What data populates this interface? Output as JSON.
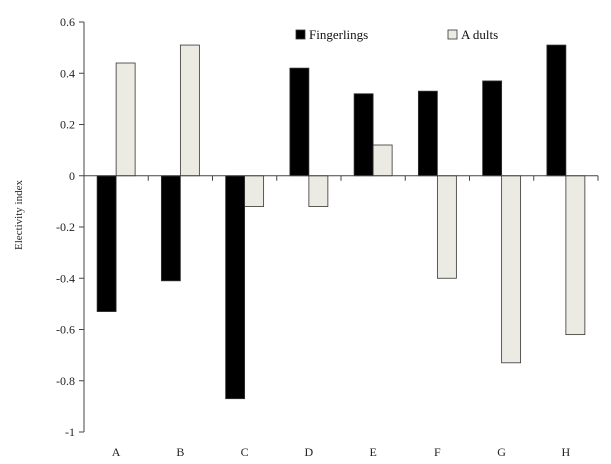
{
  "chart_data": {
    "type": "bar",
    "categories": [
      "A",
      "B",
      "C",
      "D",
      "E",
      "F",
      "G",
      "H"
    ],
    "series": [
      {
        "name": "Fingerlings",
        "color": "#000000",
        "values": [
          -0.53,
          -0.41,
          -0.87,
          0.42,
          0.32,
          0.33,
          0.37,
          0.51
        ]
      },
      {
        "name": "A dults",
        "color": "#ecebe3",
        "values": [
          0.44,
          0.51,
          -0.12,
          -0.12,
          0.12,
          -0.4,
          -0.73,
          -0.62
        ]
      }
    ],
    "ylabel": "Electivity index",
    "xlabel": "",
    "title": "",
    "ylim": [
      -1,
      0.6
    ],
    "yticks": [
      -1,
      -0.8,
      -0.6,
      -0.4,
      -0.2,
      0,
      0.2,
      0.4,
      0.6
    ],
    "ytick_labels": [
      "-1",
      "-0.8",
      "-0.6",
      "-0.4",
      "-0.2",
      "0",
      "0.2",
      "0.4",
      "0.6"
    ],
    "grid": false,
    "legend_position": "top-right"
  }
}
